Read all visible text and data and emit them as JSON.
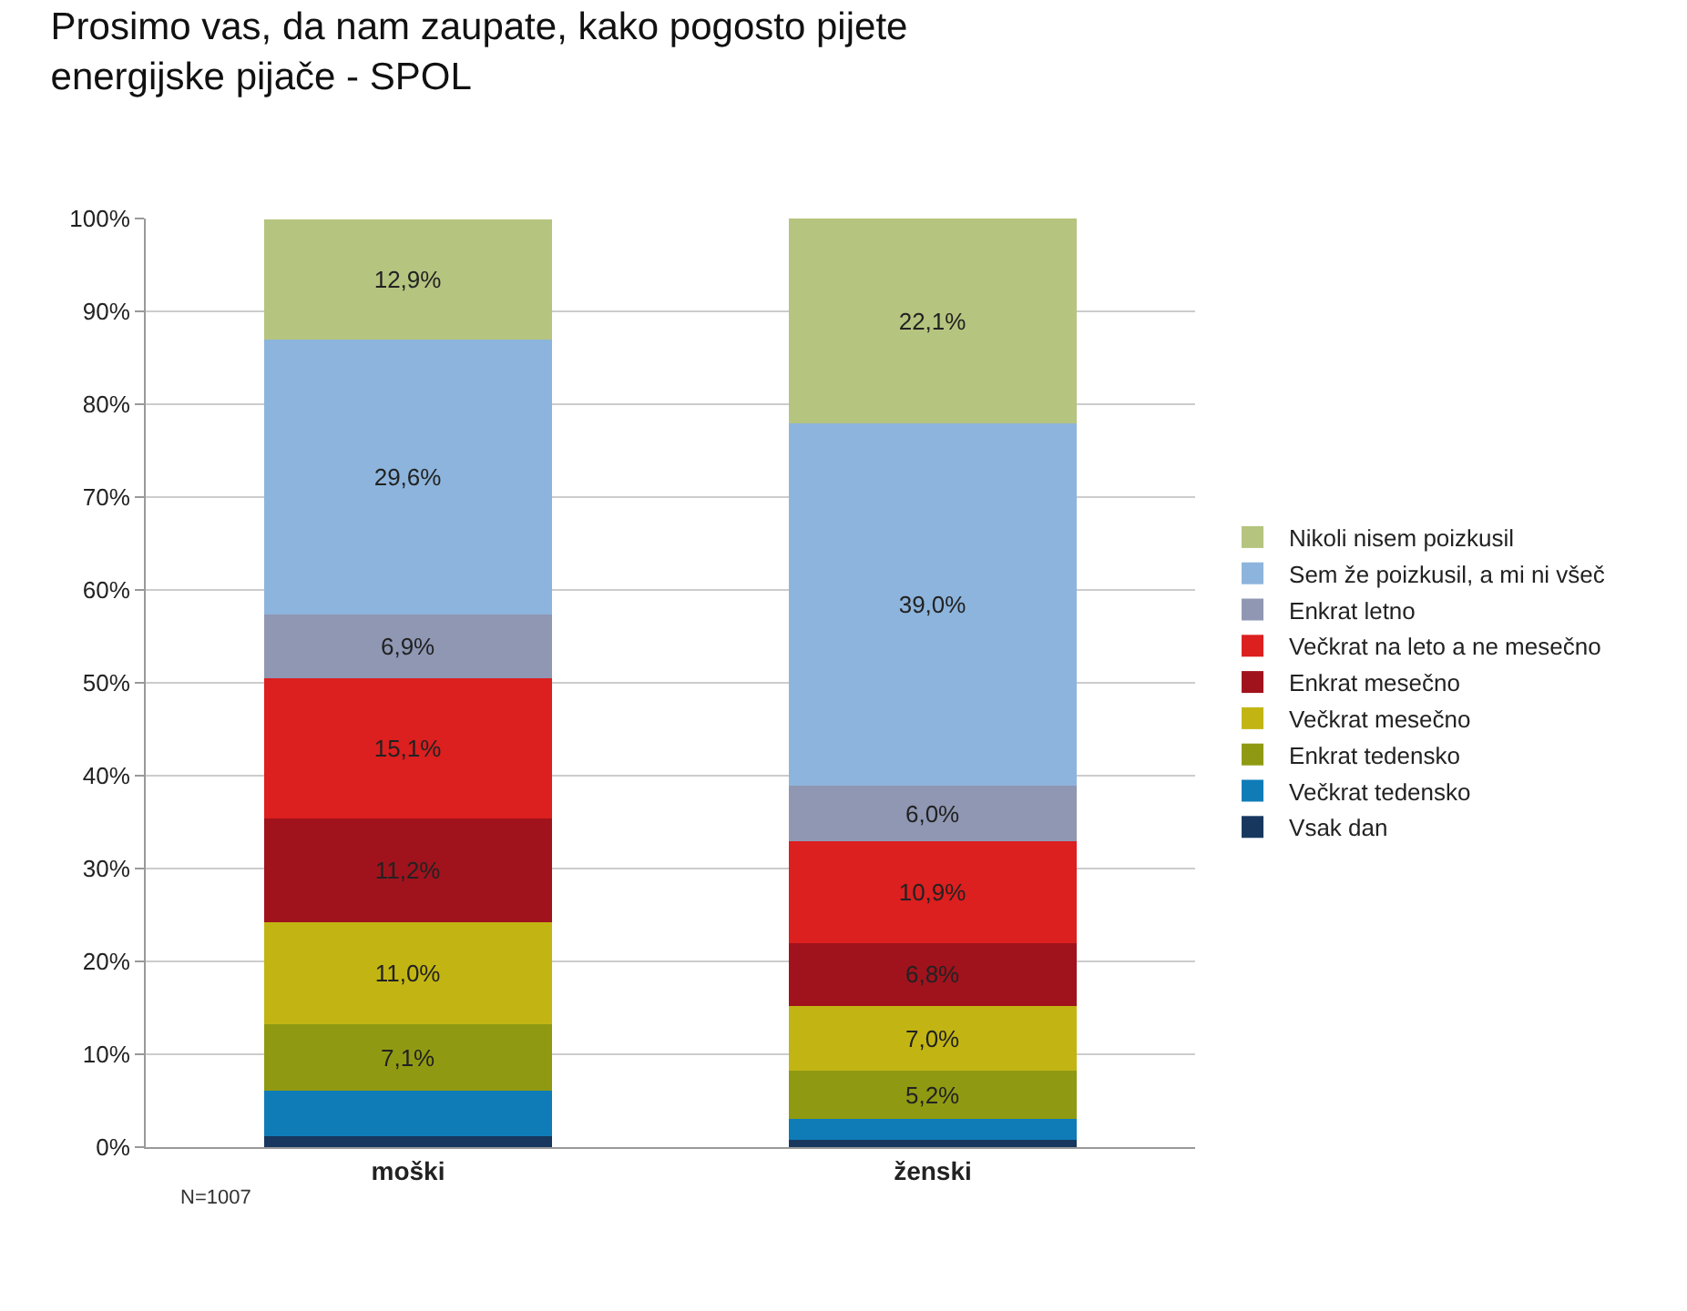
{
  "chart_data": {
    "type": "bar",
    "stacked": true,
    "title": "Prosimo vas, da nam zaupate, kako pogosto pijete energijske pijače - SPOL",
    "categories": [
      "moški",
      "ženski"
    ],
    "series": [
      {
        "name": "Vsak dan",
        "color": "#17375e",
        "values": [
          1.2,
          0.8
        ],
        "value_labels": [
          null,
          null
        ]
      },
      {
        "name": "Večkrat tedensko",
        "color": "#0f7cb8",
        "values": [
          4.9,
          2.2
        ],
        "value_labels": [
          null,
          null
        ]
      },
      {
        "name": "Enkrat tedensko",
        "color": "#8f9a12",
        "values": [
          7.1,
          5.2
        ],
        "value_labels": [
          "7,1%",
          "5,2%"
        ]
      },
      {
        "name": "Večkrat mesečno",
        "color": "#c2b513",
        "values": [
          11.0,
          7.0
        ],
        "value_labels": [
          "11,0%",
          "7,0%"
        ]
      },
      {
        "name": "Enkrat mesečno",
        "color": "#a0131d",
        "values": [
          11.2,
          6.8
        ],
        "value_labels": [
          "11,2%",
          "6,8%"
        ]
      },
      {
        "name": "Večkrat na leto a ne mesečno",
        "color": "#dc1f1f",
        "values": [
          15.1,
          10.9
        ],
        "value_labels": [
          "15,1%",
          "10,9%"
        ]
      },
      {
        "name": "Enkrat letno",
        "color": "#8f97b3",
        "values": [
          6.9,
          6.0
        ],
        "value_labels": [
          "6,9%",
          "6,0%"
        ]
      },
      {
        "name": "Sem že poizkusil, a mi ni všeč",
        "color": "#8db4dc",
        "values": [
          29.6,
          39.0
        ],
        "value_labels": [
          "29,6%",
          "39,0%"
        ]
      },
      {
        "name": "Nikoli nisem poizkusil",
        "color": "#b5c47f",
        "values": [
          12.9,
          22.1
        ],
        "value_labels": [
          "12,9%",
          "22,1%"
        ]
      }
    ],
    "ylim": [
      0,
      100
    ],
    "yticks": [
      {
        "value": 0,
        "label": "0%"
      },
      {
        "value": 10,
        "label": "10%"
      },
      {
        "value": 20,
        "label": "20%"
      },
      {
        "value": 30,
        "label": "30%"
      },
      {
        "value": 40,
        "label": "40%"
      },
      {
        "value": 50,
        "label": "50%"
      },
      {
        "value": 60,
        "label": "60%"
      },
      {
        "value": 70,
        "label": "70%"
      },
      {
        "value": 80,
        "label": "80%"
      },
      {
        "value": 90,
        "label": "90%"
      },
      {
        "value": 100,
        "label": "100%"
      }
    ],
    "grid": "y",
    "legend": "right",
    "annotations": [
      "N=1007"
    ]
  }
}
